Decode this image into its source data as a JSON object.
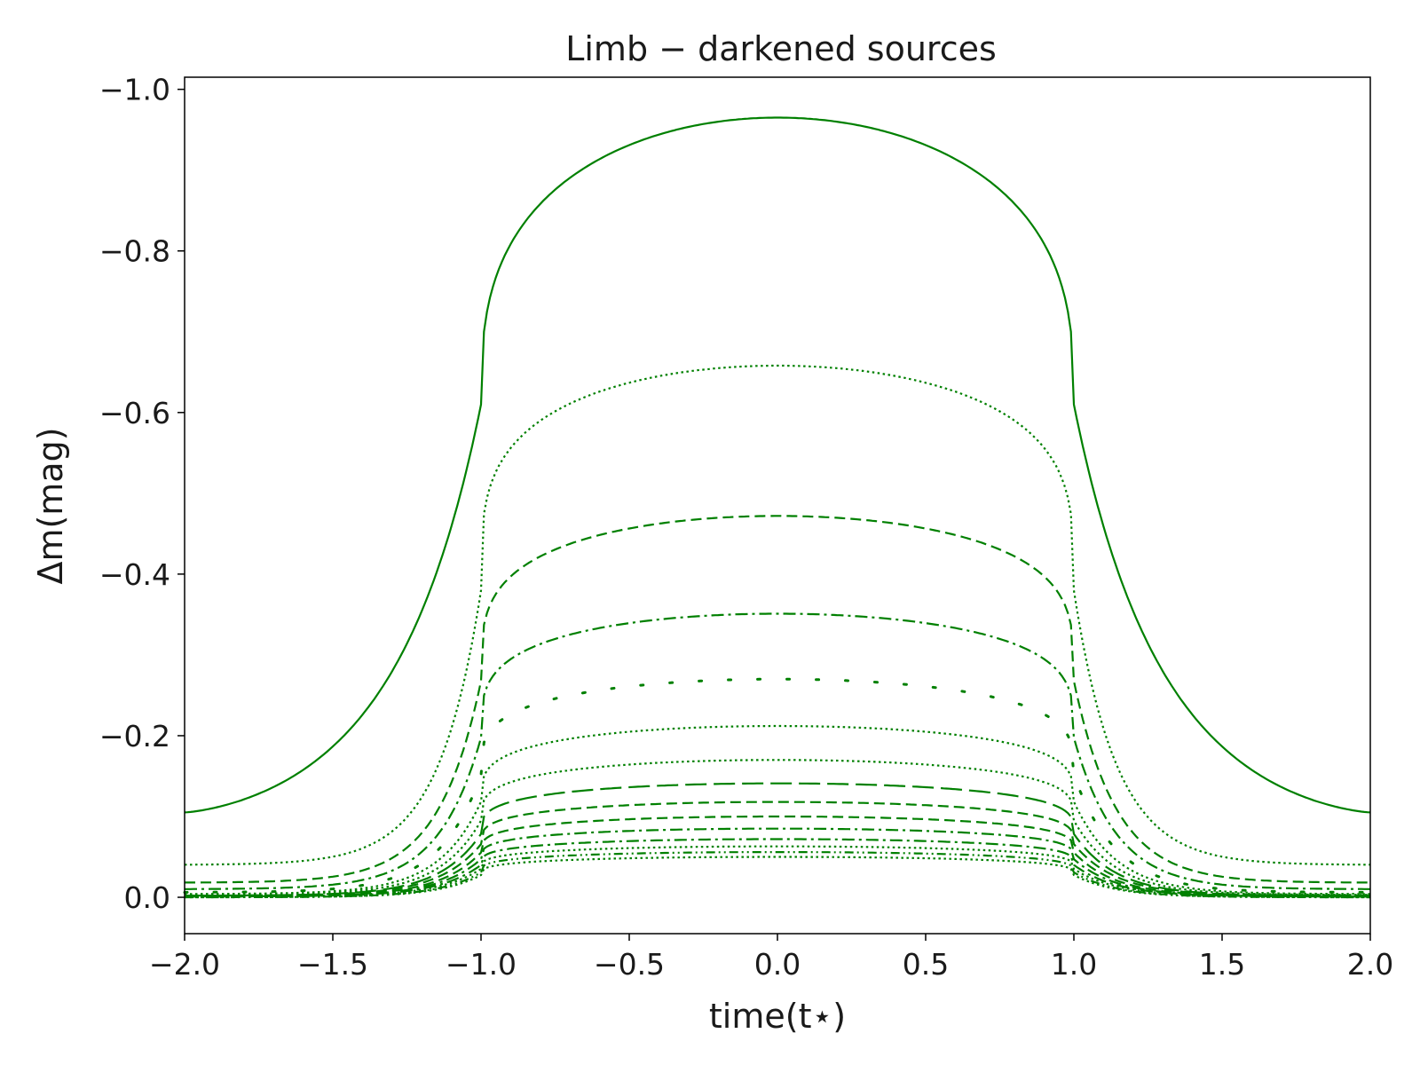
{
  "chart_data": {
    "type": "line",
    "title": "Limb − darkened sources",
    "xlabel": "time(t⋆)",
    "ylabel": "Δm(mag)",
    "xlim": [
      -2.0,
      2.0
    ],
    "ylim": [
      0.045,
      -1.015
    ],
    "y_inverted": true,
    "grid": false,
    "line_color": "#008000",
    "x_ticks": [
      -2.0,
      -1.5,
      -1.0,
      -0.5,
      0.0,
      0.5,
      1.0,
      1.5,
      2.0
    ],
    "x_tick_labels": [
      "−2.0",
      "−1.5",
      "−1.0",
      "−0.5",
      "0.0",
      "0.5",
      "1.0",
      "1.5",
      "2.0"
    ],
    "y_ticks": [
      0.0,
      -0.2,
      -0.4,
      -0.6,
      -0.8,
      -1.0
    ],
    "y_tick_labels": [
      "0.0",
      "−0.2",
      "−0.4",
      "−0.6",
      "−0.8",
      "−1.0"
    ],
    "series": [
      {
        "line_style": "solid",
        "peak": -0.965,
        "edge": -0.105,
        "values_at": {
          "x": [
            -2.0,
            -1.5,
            -1.0,
            -0.5,
            0.0,
            0.5,
            1.0,
            1.5,
            2.0
          ],
          "y": [
            -0.105,
            -0.23,
            -0.61,
            -0.915,
            -0.965,
            -0.915,
            -0.61,
            -0.23,
            -0.105
          ]
        }
      },
      {
        "line_style": "dotted",
        "peak": -0.658,
        "edge": -0.04
      },
      {
        "line_style": "dashed",
        "peak": -0.472,
        "edge": -0.018
      },
      {
        "line_style": "dashdot",
        "peak": -0.351,
        "edge": -0.01
      },
      {
        "line_style": "sparse-dotted",
        "peak": -0.27,
        "edge": -0.006
      },
      {
        "line_style": "dotted",
        "peak": -0.212,
        "edge": -0.004
      },
      {
        "line_style": "dotted",
        "peak": -0.17,
        "edge": -0.003
      },
      {
        "line_style": "long-dashed",
        "peak": -0.141,
        "edge": -0.002
      },
      {
        "line_style": "dashed",
        "peak": -0.118,
        "edge": -0.002
      },
      {
        "line_style": "dashed",
        "peak": -0.1,
        "edge": -0.001
      },
      {
        "line_style": "dashdot",
        "peak": -0.085,
        "edge": -0.001
      },
      {
        "line_style": "dashdot",
        "peak": -0.072,
        "edge": -0.001
      },
      {
        "line_style": "dotted",
        "peak": -0.063,
        "edge": -0.001
      },
      {
        "line_style": "dashdotdot",
        "peak": -0.056,
        "edge": 0.0
      },
      {
        "line_style": "dotted",
        "peak": -0.05,
        "edge": 0.0
      }
    ]
  }
}
